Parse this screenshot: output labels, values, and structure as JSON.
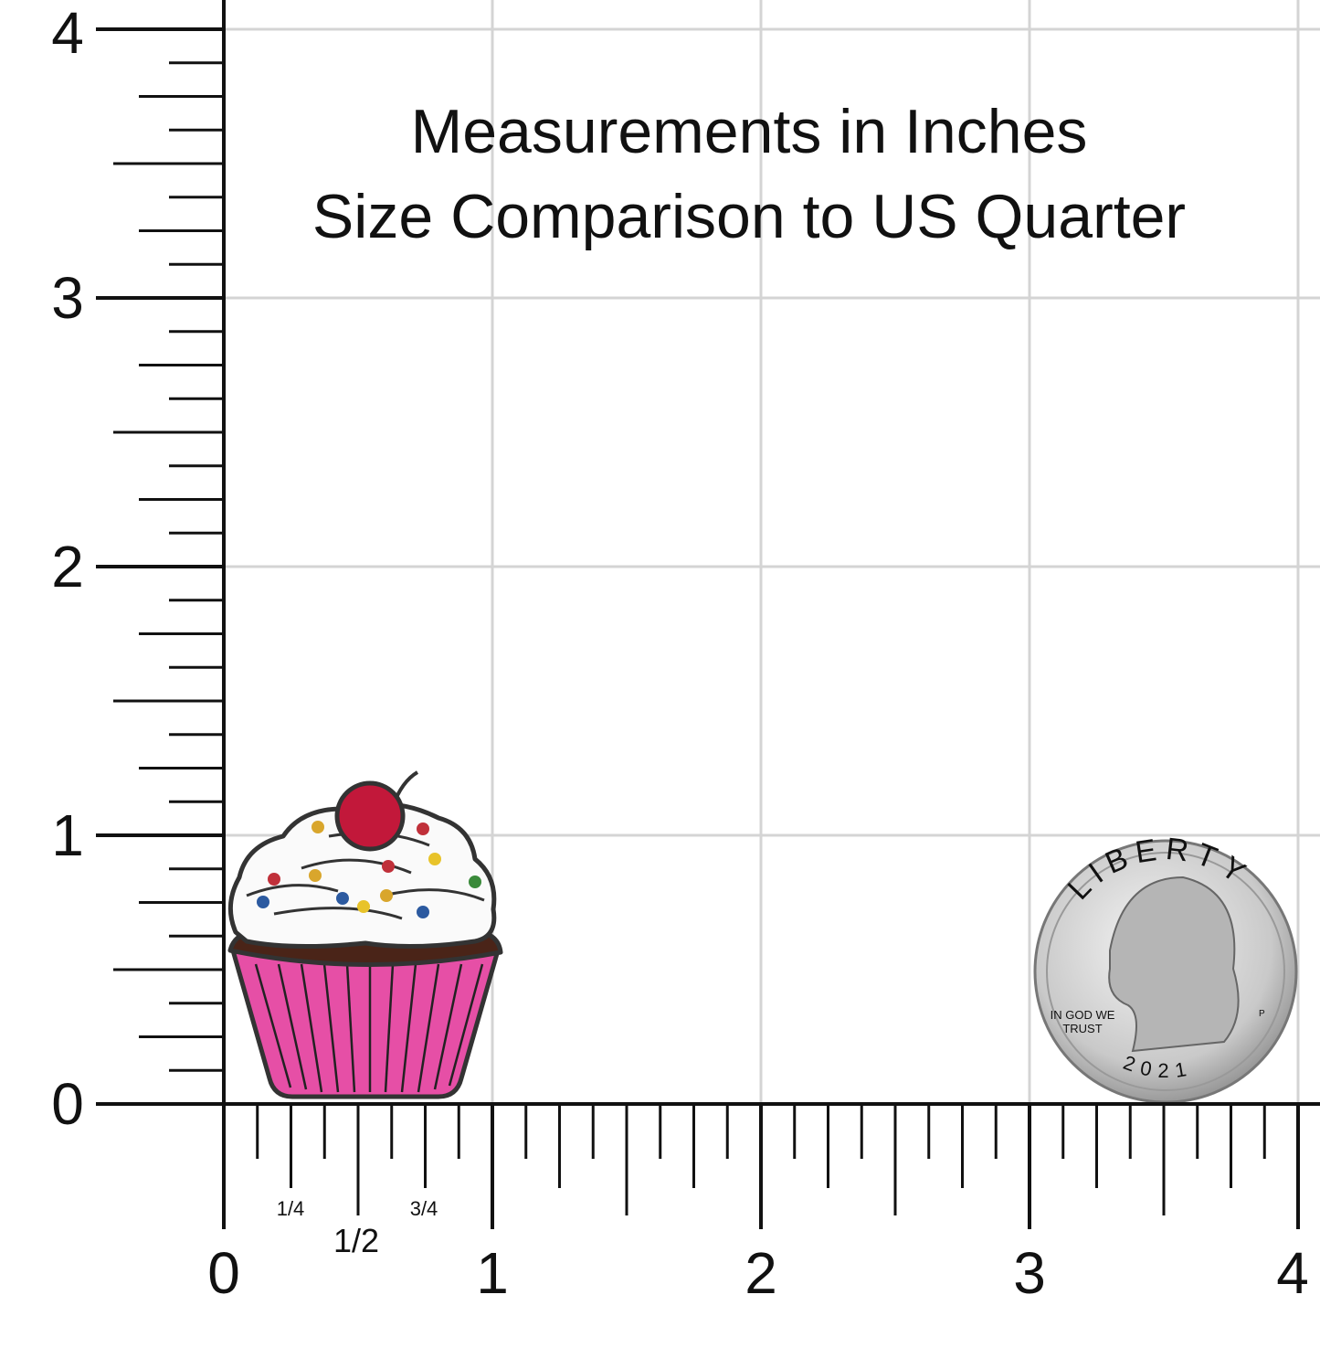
{
  "title": {
    "line1": "Measurements in Inches",
    "line2": "Size Comparison to US Quarter"
  },
  "x_axis": {
    "labels": [
      "0",
      "1",
      "2",
      "3",
      "4"
    ],
    "fractions": [
      "1/4",
      "1/2",
      "3/4"
    ]
  },
  "y_axis": {
    "labels": [
      "0",
      "1",
      "2",
      "3",
      "4"
    ]
  },
  "quarter": {
    "top": "LIBERTY",
    "motto_1": "IN GOD WE",
    "motto_2": "TRUST",
    "year": "2021",
    "mint": "P"
  }
}
